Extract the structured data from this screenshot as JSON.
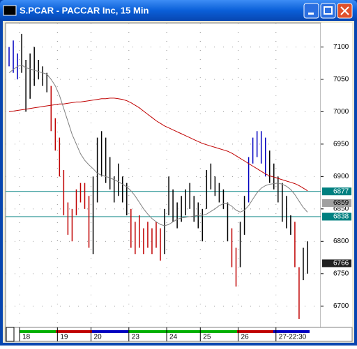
{
  "window": {
    "title": "S.PCAR - PACCAR Inc, 15 Min"
  },
  "chart_data": {
    "type": "ohlc",
    "high": [
      7100,
      7110,
      7090,
      7120,
      7080,
      7090,
      7100,
      7080,
      7070,
      7060,
      7040,
      6990,
      6960,
      6910,
      6860,
      6850,
      6880,
      6890,
      6890,
      6870,
      6900,
      6960,
      6970,
      6960,
      6930,
      6900,
      6920,
      6900,
      6890,
      6850,
      6830,
      6840,
      6820,
      6830,
      6820,
      6830,
      6820,
      6850,
      6900,
      6880,
      6860,
      6870,
      6880,
      6890,
      6870,
      6860,
      6850,
      6910,
      6920,
      6900,
      6890,
      6880,
      6860,
      6820,
      6790,
      6830,
      6870,
      6930,
      6960,
      6970,
      6970,
      6960,
      6940,
      6920,
      6900,
      6890,
      6870,
      6840,
      6830,
      6760,
      6790,
      6800
    ],
    "low": [
      7070,
      7060,
      7050,
      7060,
      7000,
      7020,
      7040,
      7050,
      7040,
      7030,
      6970,
      6940,
      6900,
      6840,
      6810,
      6800,
      6840,
      6860,
      6850,
      6790,
      6780,
      6860,
      6900,
      6890,
      6880,
      6860,
      6870,
      6860,
      6840,
      6790,
      6780,
      6790,
      6780,
      6790,
      6780,
      6790,
      6770,
      6780,
      6840,
      6830,
      6820,
      6830,
      6840,
      6850,
      6830,
      6820,
      6800,
      6850,
      6880,
      6870,
      6860,
      6850,
      6800,
      6760,
      6730,
      6760,
      6810,
      6860,
      6920,
      6930,
      6920,
      6900,
      6890,
      6880,
      6860,
      6830,
      6820,
      6810,
      6760,
      6680,
      6740,
      6750
    ],
    "colors": [
      "#0000c0",
      "#0000c0",
      "#0000c0",
      "#000000",
      "#000000",
      "#000000",
      "#000000",
      "#000000",
      "#000000",
      "#000000",
      "#c00000",
      "#c00000",
      "#c00000",
      "#c00000",
      "#c00000",
      "#c00000",
      "#c00000",
      "#c00000",
      "#c00000",
      "#c00000",
      "#000000",
      "#000000",
      "#000000",
      "#000000",
      "#000000",
      "#000000",
      "#000000",
      "#000000",
      "#000000",
      "#c00000",
      "#c00000",
      "#c00000",
      "#c00000",
      "#c00000",
      "#c00000",
      "#c00000",
      "#c00000",
      "#000000",
      "#000000",
      "#000000",
      "#000000",
      "#000000",
      "#000000",
      "#000000",
      "#000000",
      "#000000",
      "#000000",
      "#000000",
      "#000000",
      "#000000",
      "#000000",
      "#000000",
      "#000000",
      "#c00000",
      "#c00000",
      "#000000",
      "#000000",
      "#0000c0",
      "#0000c0",
      "#0000c0",
      "#0000c0",
      "#0000c0",
      "#000000",
      "#000000",
      "#000000",
      "#000000",
      "#000000",
      "#000000",
      "#c00000",
      "#c00000",
      "#000000",
      "#000000"
    ],
    "moving_averages": [
      {
        "color": "#c00000",
        "values": [
          7000,
          7001,
          7002,
          7003,
          7004,
          7005,
          7006,
          7007,
          7008,
          7009,
          7010,
          7011,
          7012,
          7012,
          7013,
          7014,
          7015,
          7015,
          7016,
          7017,
          7018,
          7019,
          7020,
          7020,
          7021,
          7021,
          7020,
          7019,
          7017,
          7014,
          7010,
          7006,
          7001,
          6996,
          6991,
          6986,
          6982,
          6978,
          6975,
          6972,
          6969,
          6966,
          6963,
          6960,
          6957,
          6954,
          6951,
          6949,
          6947,
          6945,
          6943,
          6941,
          6939,
          6936,
          6932,
          6928,
          6924,
          6920,
          6916,
          6912,
          6908,
          6904,
          6901,
          6899,
          6897,
          6895,
          6893,
          6891,
          6889,
          6886,
          6882,
          6878
        ]
      },
      {
        "color": "#808080",
        "values": [
          7060,
          7065,
          7070,
          7072,
          7068,
          7066,
          7064,
          7062,
          7060,
          7058,
          7050,
          7040,
          7025,
          7005,
          6985,
          6965,
          6950,
          6935,
          6925,
          6918,
          6912,
          6905,
          6902,
          6900,
          6898,
          6895,
          6892,
          6888,
          6884,
          6878,
          6870,
          6860,
          6850,
          6842,
          6835,
          6830,
          6826,
          6824,
          6826,
          6830,
          6834,
          6836,
          6837,
          6838,
          6839,
          6840,
          6840,
          6842,
          6846,
          6850,
          6855,
          6858,
          6858,
          6854,
          6848,
          6845,
          6848,
          6855,
          6865,
          6875,
          6882,
          6886,
          6888,
          6889,
          6890,
          6888,
          6885,
          6880,
          6872,
          6862,
          6852,
          6845
        ]
      }
    ],
    "ylim": [
      6667,
      7137
    ],
    "yticks": [
      7100,
      7050,
      7000,
      6950,
      6900,
      6850,
      6800,
      6750,
      6700
    ],
    "xticks": [
      {
        "value": 3,
        "label": "18"
      },
      {
        "value": 12,
        "label": "19"
      },
      {
        "value": 20,
        "label": "20"
      },
      {
        "value": 29,
        "label": "23"
      },
      {
        "value": 38,
        "label": "24"
      },
      {
        "value": 46,
        "label": "25"
      },
      {
        "value": 55,
        "label": "26"
      },
      {
        "value": 64,
        "label": "27-22:30"
      }
    ],
    "price_lines": [
      {
        "value": 6877,
        "color": "#008080",
        "text_color": "#ffffff"
      },
      {
        "value": 6838,
        "color": "#008080",
        "text_color": "#ffffff"
      }
    ],
    "price_markers": [
      {
        "value": 6859,
        "color": "#a0a0a0",
        "text_color": "#000000"
      },
      {
        "value": 6766,
        "color": "#202020",
        "text_color": "#ffffff"
      }
    ],
    "grid": true
  }
}
